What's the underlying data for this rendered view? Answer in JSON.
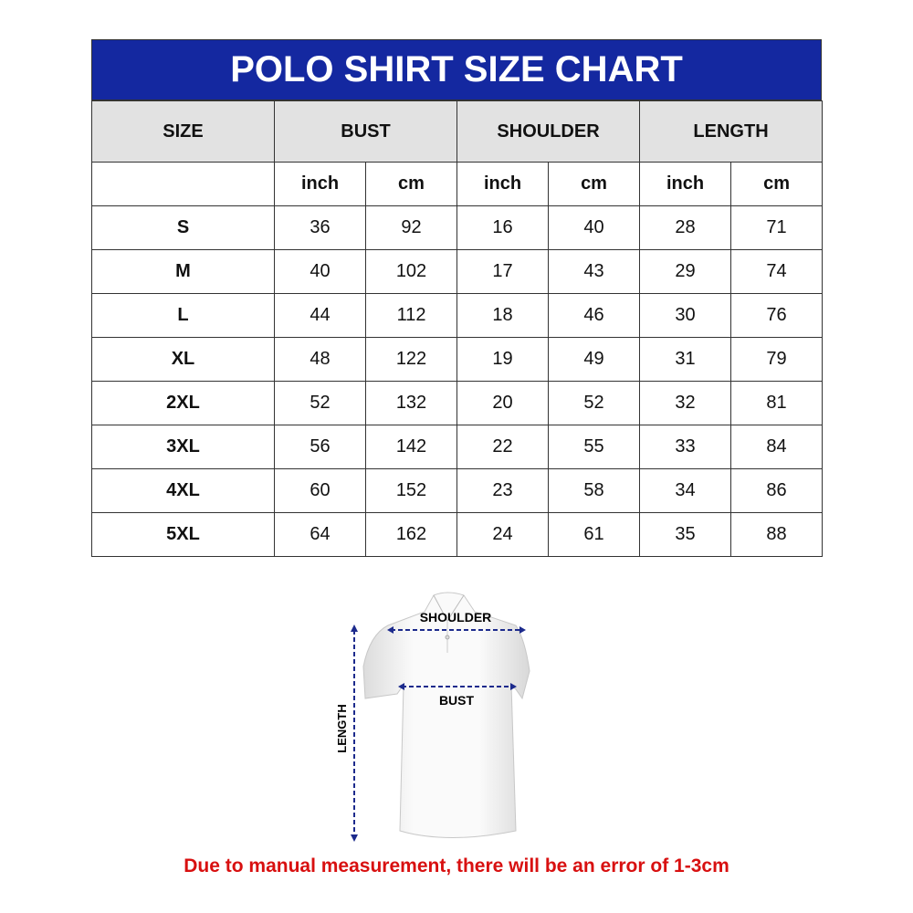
{
  "title": "POLO SHIRT SIZE CHART",
  "headers": {
    "size": "SIZE",
    "bust": "BUST",
    "shoulder": "SHOULDER",
    "length": "LENGTH"
  },
  "units": {
    "inch": "inch",
    "cm": "cm"
  },
  "rows": [
    {
      "size": "S",
      "bust_in": "36",
      "bust_cm": "92",
      "shoulder_in": "16",
      "shoulder_cm": "40",
      "length_in": "28",
      "length_cm": "71"
    },
    {
      "size": "M",
      "bust_in": "40",
      "bust_cm": "102",
      "shoulder_in": "17",
      "shoulder_cm": "43",
      "length_in": "29",
      "length_cm": "74"
    },
    {
      "size": "L",
      "bust_in": "44",
      "bust_cm": "112",
      "shoulder_in": "18",
      "shoulder_cm": "46",
      "length_in": "30",
      "length_cm": "76"
    },
    {
      "size": "XL",
      "bust_in": "48",
      "bust_cm": "122",
      "shoulder_in": "19",
      "shoulder_cm": "49",
      "length_in": "31",
      "length_cm": "79"
    },
    {
      "size": "2XL",
      "bust_in": "52",
      "bust_cm": "132",
      "shoulder_in": "20",
      "shoulder_cm": "52",
      "length_in": "32",
      "length_cm": "81"
    },
    {
      "size": "3XL",
      "bust_in": "56",
      "bust_cm": "142",
      "shoulder_in": "22",
      "shoulder_cm": "55",
      "length_in": "33",
      "length_cm": "84"
    },
    {
      "size": "4XL",
      "bust_in": "60",
      "bust_cm": "152",
      "shoulder_in": "23",
      "shoulder_cm": "58",
      "length_in": "34",
      "length_cm": "86"
    },
    {
      "size": "5XL",
      "bust_in": "64",
      "bust_cm": "162",
      "shoulder_in": "24",
      "shoulder_cm": "61",
      "length_in": "35",
      "length_cm": "88"
    }
  ],
  "diagram": {
    "shoulder": "SHOULDER",
    "bust": "BUST",
    "length": "LENGTH"
  },
  "note": "Due to manual measurement, there will be an error of 1-3cm",
  "colors": {
    "title_bg": "#1428a0",
    "header_bg": "#e2e2e2",
    "note": "#d81010",
    "arrow": "#1c2a8c"
  }
}
